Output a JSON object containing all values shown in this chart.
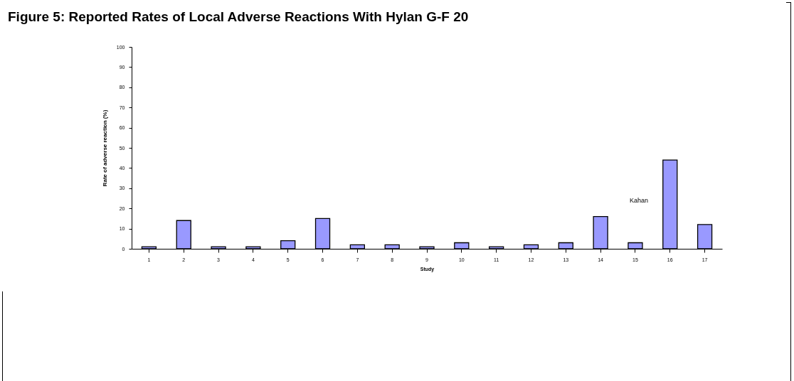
{
  "chart_data": {
    "type": "bar",
    "title": "Figure 5: Reported Rates of Local Adverse Reactions With Hylan G-F 20",
    "xlabel": "Study",
    "ylabel": "Rate of adverse reaction (%)",
    "categories": [
      "1",
      "2",
      "3",
      "4",
      "5",
      "6",
      "7",
      "8",
      "9",
      "10",
      "11",
      "12",
      "13",
      "14",
      "15",
      "16",
      "17"
    ],
    "values": [
      1,
      14,
      1,
      1,
      4,
      15,
      2,
      2,
      1,
      3,
      1,
      2,
      3,
      16,
      3,
      44,
      12
    ],
    "color": "#9999ff",
    "ylim": [
      0,
      100
    ],
    "yticks": [
      0,
      10,
      20,
      30,
      40,
      50,
      60,
      70,
      80,
      90,
      100
    ],
    "grid": false,
    "annotations": [
      "Kahan"
    ]
  }
}
